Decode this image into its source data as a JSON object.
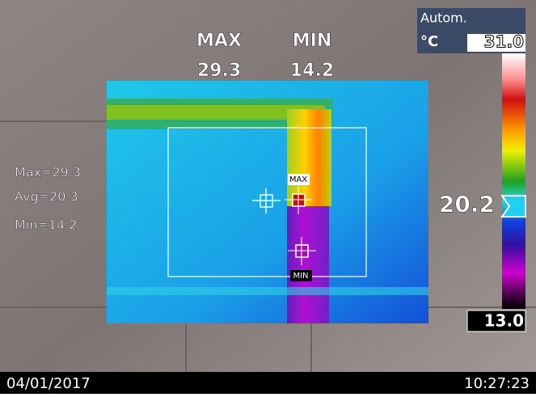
{
  "header": {
    "max_label": "MAX",
    "min_label": "MIN",
    "max_value": "29.3",
    "min_value": "14.2"
  },
  "scale": {
    "mode": "Autom.",
    "unit": "°C",
    "top": "31.0",
    "cursor": "20.2",
    "bottom": "13.0"
  },
  "stats": {
    "max": "Max=29.3",
    "avg": "Avg=20.3",
    "min": "Min=14.2"
  },
  "markers": {
    "max": "MAX",
    "min": "MIN"
  },
  "footer": {
    "date": "04/01/2017",
    "time": "10:27:23"
  }
}
